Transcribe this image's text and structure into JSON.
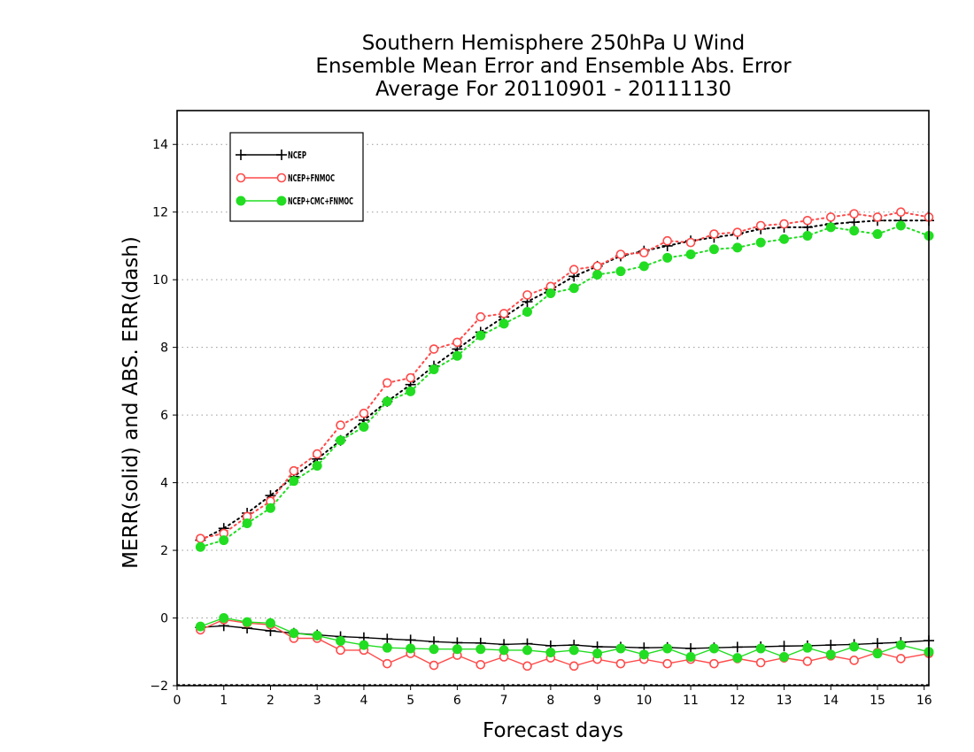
{
  "chart_data": {
    "type": "line",
    "title": [
      "Southern Hemisphere 250hPa U Wind",
      "Ensemble Mean Error and Ensemble Abs. Error",
      "Average For 20110901 - 20111130"
    ],
    "xlabel": "Forecast days",
    "ylabel": "MERR(solid) and ABS. ERR(dash)",
    "xlim": [
      0,
      16.1
    ],
    "ylim": [
      -2,
      15
    ],
    "xticks": [
      0,
      1,
      2,
      3,
      4,
      5,
      6,
      7,
      8,
      9,
      10,
      11,
      12,
      13,
      14,
      15,
      16
    ],
    "yticks": [
      -2,
      0,
      2,
      4,
      6,
      8,
      10,
      12,
      14
    ],
    "grid": "horizontal dotted",
    "legend_position": "top-left",
    "x": [
      0.5,
      1,
      1.5,
      2,
      2.5,
      3,
      3.5,
      4,
      4.5,
      5,
      5.5,
      6,
      6.5,
      7,
      7.5,
      8,
      8.5,
      9,
      9.5,
      10,
      10.5,
      11,
      11.5,
      12,
      12.5,
      13,
      13.5,
      14,
      14.5,
      15,
      15.5,
      16.1
    ],
    "series": [
      {
        "name": "NCEP",
        "color": "#000000",
        "marker": "plus",
        "merr": [
          -0.28,
          -0.23,
          -0.3,
          -0.38,
          -0.45,
          -0.5,
          -0.55,
          -0.58,
          -0.62,
          -0.65,
          -0.7,
          -0.73,
          -0.74,
          -0.78,
          -0.76,
          -0.82,
          -0.8,
          -0.85,
          -0.86,
          -0.88,
          -0.87,
          -0.9,
          -0.88,
          -0.86,
          -0.85,
          -0.83,
          -0.82,
          -0.8,
          -0.78,
          -0.75,
          -0.72,
          -0.67
        ],
        "abs_err": [
          2.3,
          2.65,
          3.1,
          3.62,
          4.18,
          4.7,
          5.25,
          5.85,
          6.4,
          6.9,
          7.45,
          7.95,
          8.45,
          8.9,
          9.35,
          9.7,
          10.1,
          10.4,
          10.7,
          10.85,
          11.0,
          11.15,
          11.25,
          11.35,
          11.5,
          11.55,
          11.55,
          11.65,
          11.7,
          11.75,
          11.75,
          11.75
        ]
      },
      {
        "name": "NCEP+FNMOC",
        "color": "#ff4a4a",
        "marker": "open-circle",
        "merr": [
          -0.35,
          -0.05,
          -0.15,
          -0.2,
          -0.6,
          -0.6,
          -0.95,
          -0.95,
          -1.35,
          -1.05,
          -1.4,
          -1.1,
          -1.38,
          -1.15,
          -1.42,
          -1.18,
          -1.42,
          -1.22,
          -1.35,
          -1.22,
          -1.35,
          -1.22,
          -1.35,
          -1.2,
          -1.32,
          -1.18,
          -1.28,
          -1.12,
          -1.25,
          -1.02,
          -1.2,
          -1.05
        ],
        "abs_err": [
          2.35,
          2.5,
          3.0,
          3.45,
          4.35,
          4.85,
          5.7,
          6.05,
          6.95,
          7.1,
          7.95,
          8.15,
          8.9,
          9.0,
          9.55,
          9.8,
          10.3,
          10.4,
          10.75,
          10.8,
          11.15,
          11.1,
          11.35,
          11.4,
          11.6,
          11.65,
          11.75,
          11.85,
          11.95,
          11.85,
          12.0,
          11.85
        ]
      },
      {
        "name": "NCEP+CMC+FNMOC",
        "color": "#22dd22",
        "marker": "filled-circle",
        "merr": [
          -0.25,
          0.0,
          -0.12,
          -0.15,
          -0.45,
          -0.52,
          -0.68,
          -0.8,
          -0.88,
          -0.9,
          -0.92,
          -0.92,
          -0.92,
          -0.95,
          -0.95,
          -1.02,
          -0.95,
          -1.05,
          -0.9,
          -1.08,
          -0.9,
          -1.15,
          -0.9,
          -1.18,
          -0.9,
          -1.15,
          -0.88,
          -1.08,
          -0.85,
          -1.05,
          -0.8,
          -1.0
        ],
        "abs_err": [
          2.1,
          2.3,
          2.8,
          3.25,
          4.05,
          4.5,
          5.25,
          5.65,
          6.4,
          6.7,
          7.35,
          7.75,
          8.35,
          8.7,
          9.05,
          9.6,
          9.75,
          10.15,
          10.25,
          10.4,
          10.65,
          10.75,
          10.9,
          10.95,
          11.1,
          11.2,
          11.3,
          11.55,
          11.45,
          11.35,
          11.6,
          11.3
        ]
      }
    ]
  }
}
